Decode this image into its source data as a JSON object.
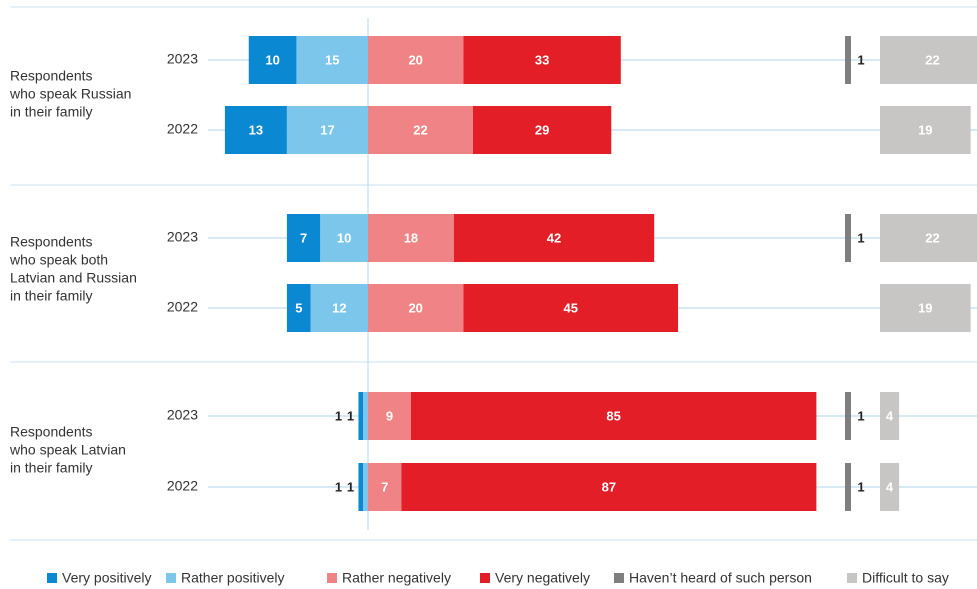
{
  "chart_data": {
    "type": "diverging-bar",
    "groups": [
      [
        "Respondents",
        "who speak Russian",
        "in their family"
      ],
      [
        "Respondents",
        "who speak both",
        "Latvian and Russian",
        "in their family"
      ],
      [
        "Respondents",
        "who speak Latvian",
        "in their family"
      ]
    ],
    "categories": [
      "2023",
      "2022",
      "2023",
      "2022",
      "2023",
      "2022"
    ],
    "series": [
      {
        "name": "Very positively",
        "color": "#0a88d1",
        "side": "left",
        "values": [
          10,
          13,
          7,
          5,
          1,
          1
        ]
      },
      {
        "name": "Rather positively",
        "color": "#7cc6ec",
        "side": "left",
        "values": [
          15,
          17,
          10,
          12,
          1,
          1
        ]
      },
      {
        "name": "Rather negatively",
        "color": "#f08385",
        "side": "right",
        "values": [
          20,
          22,
          18,
          20,
          9,
          7
        ]
      },
      {
        "name": "Very negatively",
        "color": "#e31e26",
        "side": "right",
        "values": [
          33,
          29,
          42,
          45,
          85,
          87
        ]
      },
      {
        "name": "Haven’t heard of such person",
        "color": "#7f7f7f",
        "side": "aside",
        "values": [
          1,
          null,
          1,
          null,
          1,
          1
        ]
      },
      {
        "name": "Difficult to say",
        "color": "#c8c6c4",
        "side": "aside",
        "values": [
          22,
          19,
          22,
          19,
          4,
          4
        ]
      }
    ]
  }
}
